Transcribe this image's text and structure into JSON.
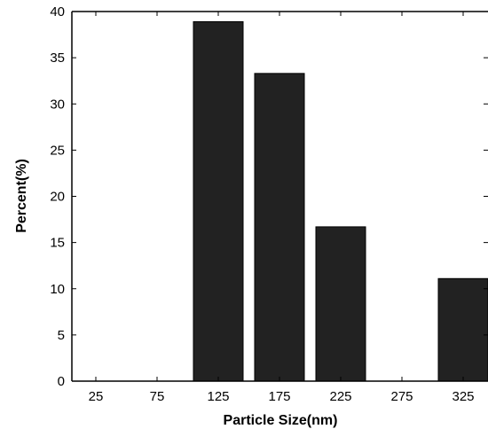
{
  "chart_data": {
    "type": "bar",
    "title": "",
    "xlabel": "Particle Size(nm)",
    "ylabel": "Percent(%)",
    "categories": [
      "25",
      "75",
      "125",
      "175",
      "225",
      "275",
      "325"
    ],
    "values": [
      0,
      0,
      38.9,
      33.3,
      16.7,
      0,
      11.1
    ],
    "ylim": [
      0,
      40
    ],
    "yticks": [
      "0",
      "5",
      "10",
      "15",
      "20",
      "25",
      "30",
      "35",
      "40"
    ],
    "grid": false,
    "legend": "none",
    "colors": {
      "bar_fill": "#222222",
      "bar_stroke": "#000000",
      "axis": "#000000",
      "background": "#ffffff"
    }
  }
}
